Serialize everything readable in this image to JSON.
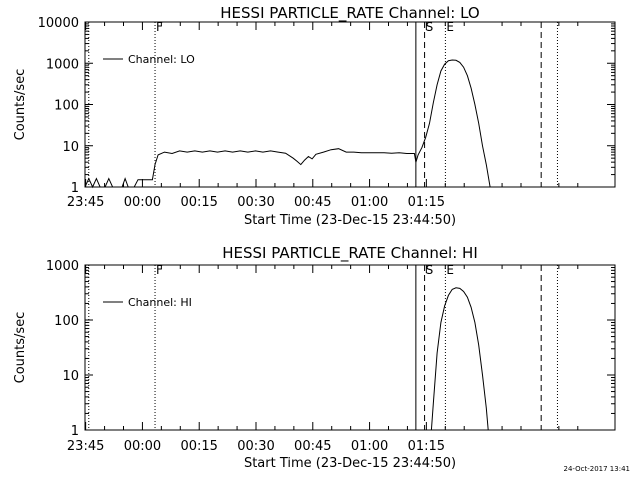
{
  "chart_data": [
    {
      "type": "line",
      "title": "HESSI PARTICLE_RATE Channel: LO",
      "xlabel": "Start Time (23-Dec-15 23:44:50)",
      "ylabel": "Counts/sec",
      "yscale": "log",
      "ylim": [
        1,
        10000
      ],
      "y_ticks": [
        "1",
        "10",
        "100",
        "1000",
        "10000"
      ],
      "x_ticks": [
        "23:45",
        "00:00",
        "00:15",
        "00:30",
        "00:45",
        "01:00",
        "01:15"
      ],
      "xlim_minutes_since_start": [
        0,
        140
      ],
      "legend": {
        "label": "Channel: LO",
        "location": "top-left"
      },
      "flags": [
        {
          "label": "F",
          "t": 18.5,
          "style": "dotted"
        },
        {
          "label": "",
          "t": 1.0,
          "style": "dotted"
        },
        {
          "label": "S",
          "t": 89.7,
          "style": "dashed"
        },
        {
          "label": "E",
          "t": 95.2,
          "style": "dotted"
        },
        {
          "label": "",
          "t": 87.4,
          "style": "solid"
        },
        {
          "label": "",
          "t": 120.5,
          "style": "dashed"
        },
        {
          "label": "",
          "t": 124.8,
          "style": "dotted"
        }
      ],
      "series": [
        {
          "name": "Channel: LO",
          "points": [
            [
              0,
              1
            ],
            [
              1,
              1.6
            ],
            [
              2,
              1
            ],
            [
              3,
              1.6
            ],
            [
              4,
              1
            ],
            [
              5.3,
              1
            ],
            [
              6.3,
              1.6
            ],
            [
              7.3,
              1
            ],
            [
              9,
              1
            ],
            [
              9.8,
              1
            ],
            [
              10.6,
              1.6
            ],
            [
              11.4,
              1
            ],
            [
              13,
              1
            ],
            [
              14,
              1.5
            ],
            [
              17.8,
              1.5
            ],
            [
              18.5,
              3.5
            ],
            [
              19.3,
              6
            ],
            [
              21,
              7
            ],
            [
              23,
              6.5
            ],
            [
              25,
              7.5
            ],
            [
              27,
              7
            ],
            [
              29,
              7.5
            ],
            [
              31,
              7
            ],
            [
              33,
              7.5
            ],
            [
              35,
              7
            ],
            [
              37,
              7.5
            ],
            [
              39,
              7
            ],
            [
              41,
              7.5
            ],
            [
              43,
              7
            ],
            [
              45,
              7.5
            ],
            [
              47,
              7
            ],
            [
              49,
              7.5
            ],
            [
              51,
              7
            ],
            [
              53,
              6.6
            ],
            [
              55,
              5
            ],
            [
              56,
              4.2
            ],
            [
              57,
              3.5
            ],
            [
              58,
              4.5
            ],
            [
              59,
              5.5
            ],
            [
              60,
              4.8
            ],
            [
              61,
              6.2
            ],
            [
              63,
              7
            ],
            [
              65,
              8
            ],
            [
              67,
              8.5
            ],
            [
              69,
              7
            ],
            [
              71,
              7
            ],
            [
              73,
              6.8
            ],
            [
              75,
              6.8
            ],
            [
              77,
              6.8
            ],
            [
              79,
              6.8
            ],
            [
              81,
              6.6
            ],
            [
              83,
              6.8
            ],
            [
              85,
              6.5
            ],
            [
              87,
              6.5
            ],
            [
              87.4,
              4
            ],
            [
              88,
              6
            ],
            [
              89,
              9
            ],
            [
              90,
              16
            ],
            [
              91,
              35
            ],
            [
              92,
              110
            ],
            [
              93,
              300
            ],
            [
              94,
              650
            ],
            [
              95,
              950
            ],
            [
              96,
              1150
            ],
            [
              97,
              1200
            ],
            [
              98,
              1180
            ],
            [
              99,
              1050
            ],
            [
              100,
              800
            ],
            [
              101,
              500
            ],
            [
              102,
              250
            ],
            [
              103,
              100
            ],
            [
              104,
              35
            ],
            [
              105,
              10
            ],
            [
              106,
              3.5
            ],
            [
              107,
              1
            ]
          ]
        }
      ]
    },
    {
      "type": "line",
      "title": "HESSI PARTICLE_RATE Channel: HI",
      "xlabel": "Start Time (23-Dec-15 23:44:50)",
      "ylabel": "Counts/sec",
      "yscale": "log",
      "ylim": [
        1,
        1000
      ],
      "y_ticks": [
        "1",
        "10",
        "100",
        "1000"
      ],
      "x_ticks": [
        "23:45",
        "00:00",
        "00:15",
        "00:30",
        "00:45",
        "01:00",
        "01:15"
      ],
      "xlim_minutes_since_start": [
        0,
        140
      ],
      "legend": {
        "label": "Channel: HI",
        "location": "top-left"
      },
      "flags": [
        {
          "label": "F",
          "t": 18.5,
          "style": "dotted"
        },
        {
          "label": "",
          "t": 1.0,
          "style": "dotted"
        },
        {
          "label": "S",
          "t": 89.7,
          "style": "dashed"
        },
        {
          "label": "E",
          "t": 95.2,
          "style": "dotted"
        },
        {
          "label": "",
          "t": 87.4,
          "style": "solid"
        },
        {
          "label": "",
          "t": 120.5,
          "style": "dashed"
        },
        {
          "label": "",
          "t": 124.8,
          "style": "dotted"
        }
      ],
      "series": [
        {
          "name": "Channel: HI",
          "points": [
            [
              91.5,
              1
            ],
            [
              92,
              3
            ],
            [
              93,
              25
            ],
            [
              94,
              90
            ],
            [
              95,
              180
            ],
            [
              96,
              280
            ],
            [
              97,
              360
            ],
            [
              98,
              385
            ],
            [
              99,
              375
            ],
            [
              100,
              330
            ],
            [
              101,
              260
            ],
            [
              102,
              170
            ],
            [
              103,
              90
            ],
            [
              104,
              35
            ],
            [
              105,
              10
            ],
            [
              106,
              2.5
            ],
            [
              106.5,
              1
            ]
          ]
        }
      ]
    }
  ],
  "footer": {
    "timestamp": "24-Oct-2017 13:41"
  }
}
